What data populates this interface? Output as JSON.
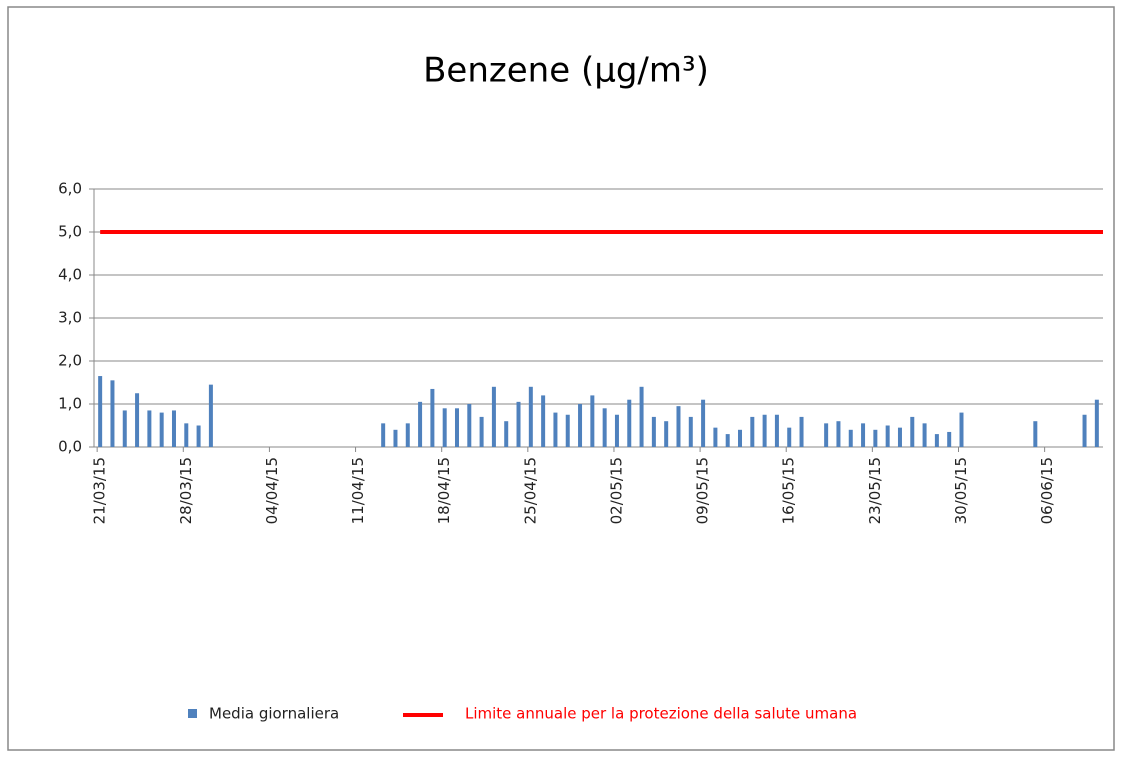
{
  "chart_data": {
    "type": "bar",
    "title": "Benzene (µg/m³)",
    "categories": [
      "21/03/15",
      null,
      null,
      null,
      null,
      null,
      null,
      "28/03/15",
      null,
      null,
      null,
      null,
      null,
      null,
      "04/04/15",
      null,
      null,
      null,
      null,
      null,
      null,
      "11/04/15",
      null,
      null,
      null,
      null,
      null,
      null,
      "18/04/15",
      null,
      null,
      null,
      null,
      null,
      null,
      "25/04/15",
      null,
      null,
      null,
      null,
      null,
      null,
      "02/05/15",
      null,
      null,
      null,
      null,
      null,
      null,
      "09/05/15",
      null,
      null,
      null,
      null,
      null,
      null,
      "16/05/15",
      null,
      null,
      null,
      null,
      null,
      null,
      "23/05/15",
      null,
      null,
      null,
      null,
      null,
      null,
      "30/05/15",
      null,
      null,
      null,
      null,
      null,
      null,
      "06/06/15",
      null,
      null,
      null,
      null
    ],
    "series": [
      {
        "name": "Media giornaliera",
        "color": "#4f81bd",
        "values": [
          1.65,
          1.55,
          0.85,
          1.25,
          0.85,
          0.8,
          0.85,
          0.55,
          0.5,
          1.45,
          null,
          null,
          null,
          null,
          null,
          null,
          null,
          null,
          null,
          null,
          null,
          null,
          null,
          0.55,
          0.4,
          0.55,
          1.05,
          1.35,
          0.9,
          0.9,
          1.0,
          0.7,
          1.4,
          0.6,
          1.05,
          1.4,
          1.2,
          0.8,
          0.75,
          1.0,
          1.2,
          0.9,
          0.75,
          1.1,
          1.4,
          0.7,
          0.6,
          0.95,
          0.7,
          1.1,
          0.45,
          0.3,
          0.4,
          0.7,
          0.75,
          0.75,
          0.45,
          0.7,
          null,
          0.55,
          0.6,
          0.4,
          0.55,
          0.4,
          0.5,
          0.45,
          0.7,
          0.55,
          0.3,
          0.35,
          0.8,
          null,
          null,
          null,
          null,
          null,
          0.6,
          null,
          null,
          null,
          0.75,
          1.1
        ]
      }
    ],
    "threshold": {
      "name": "Limite annuale per la protezione della salute umana",
      "value": 5,
      "color": "#ff0000"
    },
    "ylim": [
      0,
      6
    ],
    "yticks": [
      {
        "value": 0,
        "label": "0,0"
      },
      {
        "value": 1,
        "label": "1,0"
      },
      {
        "value": 2,
        "label": "2,0"
      },
      {
        "value": 3,
        "label": "3,0"
      },
      {
        "value": 4,
        "label": "4,0"
      },
      {
        "value": 5,
        "label": "5,0"
      },
      {
        "value": 6,
        "label": "6,0"
      }
    ],
    "grid": true
  }
}
